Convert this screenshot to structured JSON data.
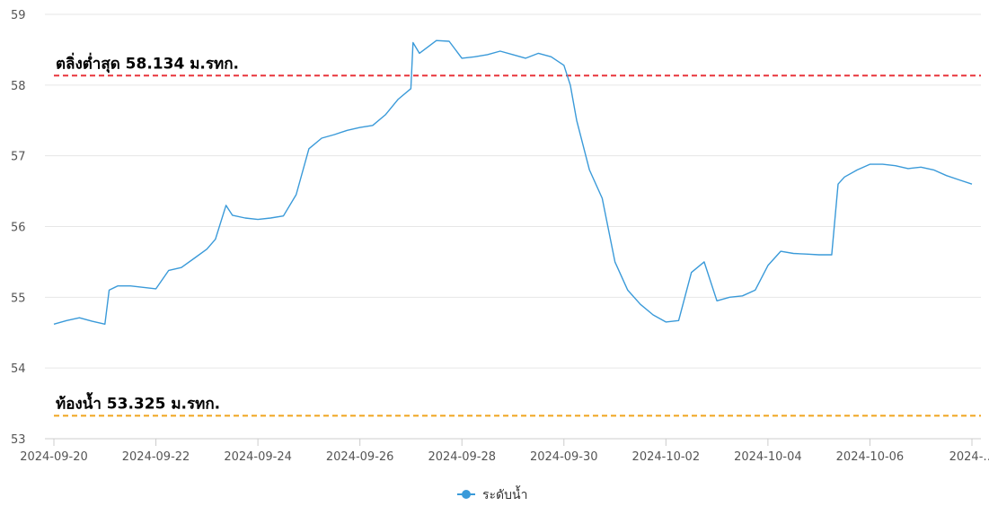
{
  "chart_data": {
    "type": "line",
    "ylim": [
      53,
      59
    ],
    "y_ticks": [
      53,
      54,
      55,
      56,
      57,
      58,
      59
    ],
    "xlim": [
      "2024-09-20",
      "2024-10-08"
    ],
    "x_tick_labels": [
      "2024-09-20",
      "2024-09-22",
      "2024-09-24",
      "2024-09-26",
      "2024-09-28",
      "2024-09-30",
      "2024-10-02",
      "2024-10-04",
      "2024-10-06",
      "2024-…"
    ],
    "x_tick_dates": [
      "2024-09-20",
      "2024-09-22",
      "2024-09-24",
      "2024-09-26",
      "2024-09-28",
      "2024-09-30",
      "2024-10-02",
      "2024-10-04",
      "2024-10-06",
      "2024-10-08"
    ],
    "grid": true,
    "legend_position": "bottom-center",
    "series": [
      {
        "name": "ระดับน้ำ",
        "color": "#3a9ad9",
        "points": [
          [
            "2024-09-20",
            54.62
          ],
          [
            "2024-09-20T06",
            54.67
          ],
          [
            "2024-09-20T12",
            54.71
          ],
          [
            "2024-09-20T18",
            54.66
          ],
          [
            "2024-09-21",
            54.62
          ],
          [
            "2024-09-21T02",
            55.1
          ],
          [
            "2024-09-21T06",
            55.16
          ],
          [
            "2024-09-21T12",
            55.16
          ],
          [
            "2024-09-21T18",
            55.14
          ],
          [
            "2024-09-22",
            55.12
          ],
          [
            "2024-09-22T06",
            55.38
          ],
          [
            "2024-09-22T12",
            55.42
          ],
          [
            "2024-09-22T18",
            55.55
          ],
          [
            "2024-09-23",
            55.68
          ],
          [
            "2024-09-23T04",
            55.82
          ],
          [
            "2024-09-23T09",
            56.3
          ],
          [
            "2024-09-23T12",
            56.16
          ],
          [
            "2024-09-23T18",
            56.12
          ],
          [
            "2024-09-24",
            56.1
          ],
          [
            "2024-09-24T06",
            56.12
          ],
          [
            "2024-09-24T12",
            56.15
          ],
          [
            "2024-09-24T18",
            56.45
          ],
          [
            "2024-09-25",
            57.1
          ],
          [
            "2024-09-25T06",
            57.25
          ],
          [
            "2024-09-25T12",
            57.3
          ],
          [
            "2024-09-25T18",
            57.36
          ],
          [
            "2024-09-26",
            57.4
          ],
          [
            "2024-09-26T06",
            57.43
          ],
          [
            "2024-09-26T12",
            57.58
          ],
          [
            "2024-09-26T18",
            57.8
          ],
          [
            "2024-09-27",
            57.95
          ],
          [
            "2024-09-27T01",
            58.6
          ],
          [
            "2024-09-27T04",
            58.45
          ],
          [
            "2024-09-27T12",
            58.63
          ],
          [
            "2024-09-27T18",
            58.62
          ],
          [
            "2024-09-28",
            58.38
          ],
          [
            "2024-09-28T06",
            58.4
          ],
          [
            "2024-09-28T12",
            58.43
          ],
          [
            "2024-09-28T18",
            58.48
          ],
          [
            "2024-09-29",
            58.43
          ],
          [
            "2024-09-29T06",
            58.38
          ],
          [
            "2024-09-29T12",
            58.45
          ],
          [
            "2024-09-29T18",
            58.4
          ],
          [
            "2024-09-30",
            58.28
          ],
          [
            "2024-09-30T03",
            58.0
          ],
          [
            "2024-09-30T06",
            57.5
          ],
          [
            "2024-09-30T12",
            56.8
          ],
          [
            "2024-09-30T18",
            56.4
          ],
          [
            "2024-10-01",
            55.5
          ],
          [
            "2024-10-01T06",
            55.1
          ],
          [
            "2024-10-01T12",
            54.9
          ],
          [
            "2024-10-01T18",
            54.75
          ],
          [
            "2024-10-02",
            54.65
          ],
          [
            "2024-10-02T06",
            54.67
          ],
          [
            "2024-10-02T12",
            55.35
          ],
          [
            "2024-10-02T18",
            55.5
          ],
          [
            "2024-10-03",
            54.95
          ],
          [
            "2024-10-03T06",
            55.0
          ],
          [
            "2024-10-03T12",
            55.02
          ],
          [
            "2024-10-03T18",
            55.1
          ],
          [
            "2024-10-04",
            55.45
          ],
          [
            "2024-10-04T06",
            55.65
          ],
          [
            "2024-10-04T12",
            55.62
          ],
          [
            "2024-10-04T18",
            55.61
          ],
          [
            "2024-10-05",
            55.6
          ],
          [
            "2024-10-05T06",
            55.6
          ],
          [
            "2024-10-05T09",
            56.6
          ],
          [
            "2024-10-05T12",
            56.7
          ],
          [
            "2024-10-05T18",
            56.8
          ],
          [
            "2024-10-06",
            56.88
          ],
          [
            "2024-10-06T06",
            56.88
          ],
          [
            "2024-10-06T12",
            56.86
          ],
          [
            "2024-10-06T18",
            56.82
          ],
          [
            "2024-10-07",
            56.84
          ],
          [
            "2024-10-07T06",
            56.8
          ],
          [
            "2024-10-07T12",
            56.72
          ],
          [
            "2024-10-07T18",
            56.66
          ],
          [
            "2024-10-08",
            56.6
          ]
        ]
      }
    ],
    "reference_lines": [
      {
        "label": "ตลิ่งต่ำสุด 58.134 ม.รทก.",
        "value": 58.134,
        "color": "#e8353c",
        "style": "dashed"
      },
      {
        "label": "ท้องน้ำ 53.325 ม.รทก.",
        "value": 53.325,
        "color": "#f0a51e",
        "style": "dashed"
      }
    ]
  }
}
